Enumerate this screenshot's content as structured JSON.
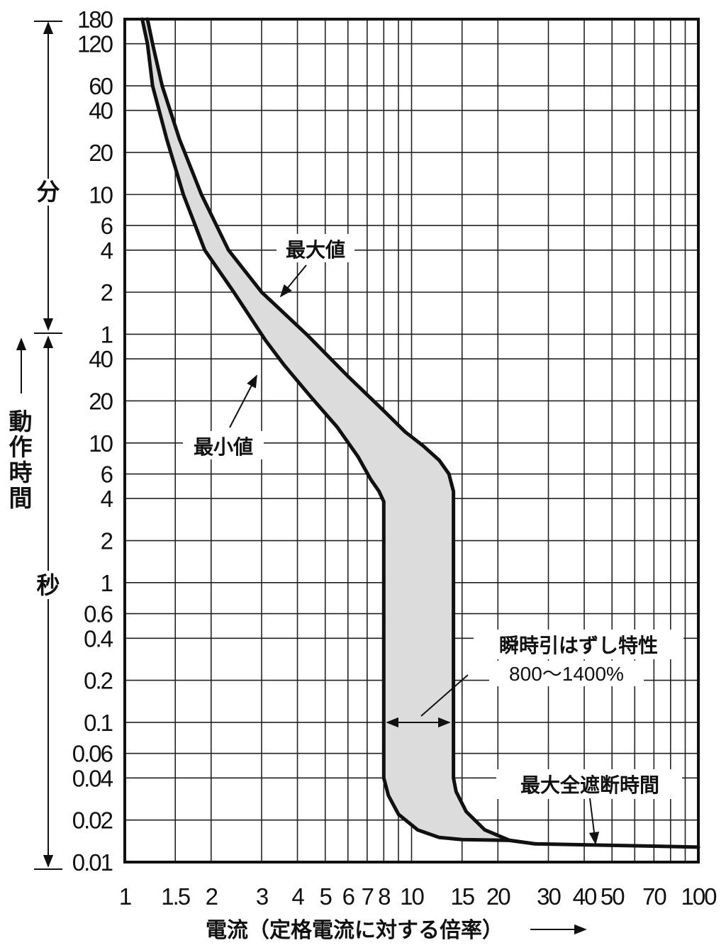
{
  "chart_data": {
    "type": "area",
    "x_scale": "log",
    "y_scale": "log",
    "xlim": [
      1,
      100
    ],
    "ylim_seconds": [
      0.01,
      10800
    ],
    "grid": true,
    "x_ticks": [
      {
        "value": 1,
        "label": "1"
      },
      {
        "value": 1.5,
        "label": "1.5"
      },
      {
        "value": 2,
        "label": "2"
      },
      {
        "value": 3,
        "label": "3"
      },
      {
        "value": 4,
        "label": "4"
      },
      {
        "value": 5,
        "label": "5"
      },
      {
        "value": 6,
        "label": "6"
      },
      {
        "value": 7,
        "label": "7"
      },
      {
        "value": 8,
        "label": "8"
      },
      {
        "value": 10,
        "label": "10"
      },
      {
        "value": 15,
        "label": "15"
      },
      {
        "value": 20,
        "label": "20"
      },
      {
        "value": 30,
        "label": "30"
      },
      {
        "value": 40,
        "label": "40"
      },
      {
        "value": 50,
        "label": "50"
      },
      {
        "value": 70,
        "label": "70"
      },
      {
        "value": 100,
        "label": "100"
      }
    ],
    "x_gridlines": [
      1,
      1.5,
      2,
      3,
      4,
      5,
      6,
      7,
      8,
      9,
      10,
      15,
      20,
      30,
      40,
      50,
      60,
      70,
      80,
      90,
      100
    ],
    "y_ticks": [
      {
        "seconds": 10800,
        "label": "180"
      },
      {
        "seconds": 7200,
        "label": "120"
      },
      {
        "seconds": 3600,
        "label": "60"
      },
      {
        "seconds": 2400,
        "label": "40"
      },
      {
        "seconds": 1200,
        "label": "20"
      },
      {
        "seconds": 600,
        "label": "10"
      },
      {
        "seconds": 360,
        "label": "6"
      },
      {
        "seconds": 240,
        "label": "4"
      },
      {
        "seconds": 120,
        "label": "2"
      },
      {
        "seconds": 60,
        "label": "1"
      },
      {
        "seconds": 40,
        "label": "40"
      },
      {
        "seconds": 20,
        "label": "20"
      },
      {
        "seconds": 10,
        "label": "10"
      },
      {
        "seconds": 6,
        "label": "6"
      },
      {
        "seconds": 4,
        "label": "4"
      },
      {
        "seconds": 2,
        "label": "2"
      },
      {
        "seconds": 1,
        "label": "1"
      },
      {
        "seconds": 0.6,
        "label": "0.6"
      },
      {
        "seconds": 0.4,
        "label": "0.4"
      },
      {
        "seconds": 0.2,
        "label": "0.2"
      },
      {
        "seconds": 0.1,
        "label": "0.1"
      },
      {
        "seconds": 0.06,
        "label": "0.06"
      },
      {
        "seconds": 0.04,
        "label": "0.04"
      },
      {
        "seconds": 0.02,
        "label": "0.02"
      },
      {
        "seconds": 0.01,
        "label": "0.01"
      }
    ],
    "series": [
      {
        "name": "最大値",
        "points": [
          [
            1.2,
            10800
          ],
          [
            1.25,
            7200
          ],
          [
            1.35,
            3600
          ],
          [
            1.55,
            1500
          ],
          [
            1.85,
            600
          ],
          [
            2.3,
            240
          ],
          [
            3,
            120
          ],
          [
            4.3,
            60
          ],
          [
            6,
            30
          ],
          [
            8,
            17
          ],
          [
            9.5,
            12
          ],
          [
            11,
            9.5
          ],
          [
            12.5,
            7.5
          ],
          [
            13.5,
            6
          ],
          [
            14,
            4.5
          ],
          [
            14,
            0.04
          ],
          [
            14.3,
            0.032
          ],
          [
            15.5,
            0.023
          ],
          [
            18,
            0.017
          ],
          [
            22,
            0.0143
          ],
          [
            27,
            0.0135
          ],
          [
            40,
            0.0133
          ],
          [
            70,
            0.013
          ],
          [
            100,
            0.0128
          ]
        ]
      },
      {
        "name": "最小値",
        "points": [
          [
            1.15,
            10800
          ],
          [
            1.2,
            7200
          ],
          [
            1.25,
            3600
          ],
          [
            1.4,
            1500
          ],
          [
            1.6,
            600
          ],
          [
            1.9,
            240
          ],
          [
            2.4,
            120
          ],
          [
            3.1,
            54
          ],
          [
            3.6,
            36
          ],
          [
            4.4,
            22
          ],
          [
            5.5,
            13
          ],
          [
            6.5,
            8
          ],
          [
            7.2,
            5.5
          ],
          [
            7.7,
            4.5
          ],
          [
            8,
            3.8
          ],
          [
            8,
            0.04
          ],
          [
            8.3,
            0.03
          ],
          [
            9,
            0.022
          ],
          [
            10.5,
            0.017
          ],
          [
            12.5,
            0.015
          ],
          [
            15,
            0.0145
          ],
          [
            22,
            0.0143
          ],
          [
            27,
            0.0135
          ]
        ]
      }
    ]
  },
  "axis": {
    "x_title": "電流（定格電流に対する倍率）",
    "x_arrow": "→",
    "y_title": "動作時間",
    "y_title_chars": [
      "動",
      "作",
      "時",
      "間"
    ],
    "unit_minutes": "分",
    "unit_seconds": "秒"
  },
  "annotations": {
    "max_label": "最大値",
    "min_label": "最小値",
    "instant_title": "瞬時引はずし特性",
    "instant_range": "800〜1400%",
    "total_clearing": "最大全遮断時間"
  }
}
